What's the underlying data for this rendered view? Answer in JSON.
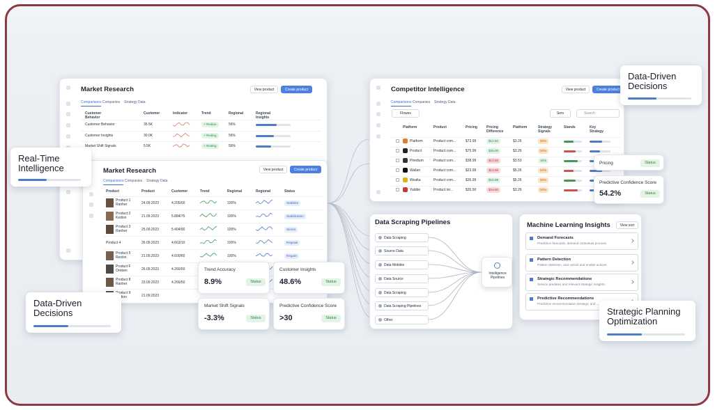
{
  "callouts": {
    "realtime": "Real-Time Intelligence",
    "decisions_left": "Data-Driven Decisions",
    "decisions_right": "Data-Driven Decisions",
    "strategic": "Strategic Planning Optimization"
  },
  "market_research_back": {
    "title": "Market Research",
    "buttons": [
      "View product",
      "Create product"
    ],
    "tabs": [
      "Comparisons",
      "Companies",
      "Strategy Data"
    ],
    "columns": [
      "Customer Behavior",
      "Customer",
      "Indicator",
      "Trend",
      "Regional",
      "Regional Insights"
    ],
    "rows": [
      [
        "Customer Behavior",
        "35.5K",
        "+ Redion",
        "56%"
      ],
      [
        "Customer Insights",
        "30.0K",
        "+ Reding",
        "56%"
      ],
      [
        "Market Shift Signals",
        "5.5K",
        "+ Reding",
        "56%"
      ]
    ]
  },
  "market_research_front": {
    "title": "Market Research",
    "buttons": [
      "View product",
      "Create product"
    ],
    "tabs": [
      "Comparisons",
      "Companies",
      "Strategy Data"
    ],
    "columns": [
      "Product",
      "Product",
      "Customer",
      "Trend",
      "Regional",
      "Regional",
      "Status"
    ],
    "rows": [
      [
        "Product 1 Ranher",
        "24.09.2023",
        "4.205/00",
        "100%",
        "Stabilize"
      ],
      [
        "Product 2 Kedion",
        "21.09.2023",
        "5.884/75",
        "100%",
        "Stabilization"
      ],
      [
        "Product 3 Ranher",
        "25.09.2023",
        "5.404/90",
        "100%",
        "Stores"
      ],
      [
        "Product 4",
        "26.09.2023",
        "4.663/10",
        "100%",
        "Regrate"
      ],
      [
        "Product 5 Rexion",
        "21.09.2023",
        "4.600/60",
        "100%",
        "Regate"
      ],
      [
        "Product F Oreben",
        "26.09.2023",
        "4.266/50",
        "100%"
      ],
      [
        "Product 8 Ranher",
        "23.09.2023",
        "4.266/50",
        "100%"
      ],
      [
        "Product 9 Redion",
        "21.09.2023",
        "",
        ""
      ]
    ]
  },
  "metrics": [
    {
      "label": "Trend Accuracy",
      "value": "8.9%",
      "status": "Status"
    },
    {
      "label": "Customer Insights",
      "value": "48.6%",
      "status": "Status"
    },
    {
      "label": "Market Shift Signals",
      "value": "-3.3%",
      "status": "Status"
    },
    {
      "label": "Predictive Confidence Score",
      "value": ">30",
      "status": "Status"
    }
  ],
  "competitor_intelligence": {
    "title": "Competitor Intelligence",
    "buttons": [
      "View product",
      "Create product"
    ],
    "tabs": [
      "Comparisons",
      "Companies",
      "Strategy Data"
    ],
    "filter": "Flowes",
    "sort": "Sers",
    "search": "Search",
    "columns": [
      "Platform",
      "Product",
      "Pricing",
      "Pricing Difference",
      "Platform",
      "Strategy Signals",
      "Stands",
      "Key Strategy"
    ],
    "rows": [
      [
        "Platform",
        "Product com...",
        "$73.99",
        "$12.50",
        "$3.26",
        "56%"
      ],
      [
        "Product",
        "Product com...",
        "$75.99",
        "$29.00",
        "$3.26",
        "56%"
      ],
      [
        "Phedium",
        "Product com...",
        "$38.99",
        "$13.60",
        "$3.53",
        "16%"
      ],
      [
        "Wallan",
        "Product com...",
        "$23.99",
        "$13.90",
        "$5.26",
        "54%"
      ],
      [
        "Wealta",
        "Product com...",
        "$35.99",
        "$15.99",
        "$5.26",
        "56%"
      ],
      [
        "Yaldde",
        "Product lor...",
        "$35.50",
        "$19.50",
        "$3.26",
        "56%"
      ]
    ]
  },
  "side_cards": {
    "pricing": {
      "label": "Pricing",
      "status": "Status"
    },
    "confidence": {
      "label": "Predictive Confidence Score",
      "value": "54.2%",
      "status": "Status"
    }
  },
  "data_scraping": {
    "title": "Data Scraping Pipelines",
    "items": [
      "Data Scraping",
      "Source Data",
      "Data Mobiles",
      "Data Source",
      "Data Scraping",
      "Data Scraping Pipelines",
      "Other"
    ],
    "hub": "Intelligence Pipelines"
  },
  "ml_insights": {
    "title": "Machine Learning Insights",
    "button": "View sort",
    "items": [
      {
        "title": "Demand Forecasts",
        "description": "Predictive forecasts, demand contextual process."
      },
      {
        "title": "Pattern Detection",
        "description": "Pattern detection, and unlock and enable actions."
      },
      {
        "title": "Strategic Recommendations",
        "description": "Service predates and relevant strategic insights."
      },
      {
        "title": "Predictive Recommendations",
        "description": "Predictive recommendation strategic and ..."
      }
    ]
  }
}
